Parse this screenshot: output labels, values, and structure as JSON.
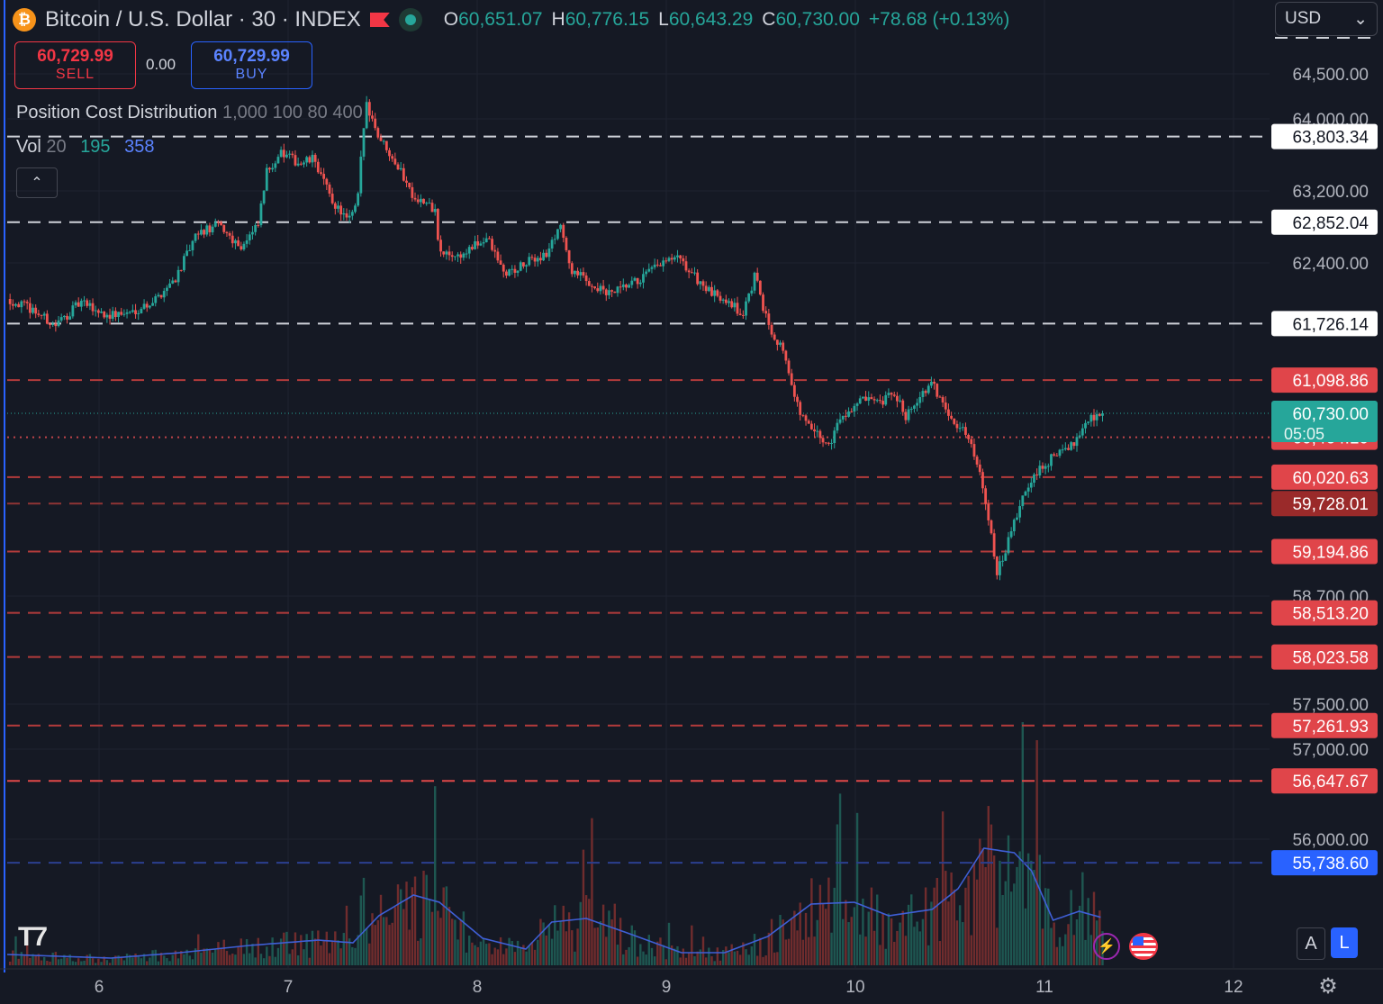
{
  "header": {
    "symbol_title": "Bitcoin / U.S. Dollar · 30 · INDEX",
    "ohlc": [
      {
        "k": "O",
        "v": "60,651.07"
      },
      {
        "k": "H",
        "v": "60,776.15"
      },
      {
        "k": "L",
        "v": "60,643.29"
      },
      {
        "k": "C",
        "v": "60,730.00"
      }
    ],
    "change": "+78.68 (+0.13%)",
    "currency": "USD"
  },
  "trade": {
    "sell_price": "60,729.99",
    "sell_label": "SELL",
    "spread": "0.00",
    "buy_price": "60,729.99",
    "buy_label": "BUY"
  },
  "indicators": {
    "pcd_name": "Position Cost Distribution",
    "pcd_params": "1,000 100 80 400",
    "vol_name": "Vol",
    "vol_length": "20",
    "vol_value": "195",
    "vol_ma_value": "358"
  },
  "controls": {
    "collapse": "⌃",
    "scale_a": "A",
    "scale_l": "L",
    "settings": "⚙",
    "bolt": "⚡"
  },
  "colors": {
    "background": "#151924",
    "up": "#26a69a",
    "down": "#ef5350",
    "white_level": "#cfd2d9",
    "red_level": "#b33b3b",
    "vol_ma": "#3f5fd6"
  },
  "chart_data": {
    "type": "candlestick",
    "title": "Bitcoin / U.S. Dollar · 30 · INDEX",
    "x_tick_labels": [
      "6",
      "7",
      "8",
      "9",
      "10",
      "11",
      "12"
    ],
    "y_tick_labels": [
      "64,500.00",
      "64,000.00",
      "63,200.00",
      "62,400.00",
      "58,700.00",
      "57,500.00",
      "57,000.00",
      "56,000.00"
    ],
    "y_ticks": [
      64500,
      64000,
      63200,
      62400,
      58700,
      57500,
      57000,
      56000
    ],
    "ylim": [
      55500,
      64700
    ],
    "last_price": {
      "value": 60730.0,
      "label": "60,730.00",
      "countdown": "05:05"
    },
    "levels": [
      {
        "value": 63803.34,
        "label": "63,803.34",
        "style": "white"
      },
      {
        "value": 62852.04,
        "label": "62,852.04",
        "style": "white"
      },
      {
        "value": 61726.14,
        "label": "61,726.14",
        "style": "white"
      },
      {
        "value": 61098.86,
        "label": "61,098.86",
        "style": "red"
      },
      {
        "value": 60464.1,
        "label": "60,464.10",
        "style": "red-dotted"
      },
      {
        "value": 60020.63,
        "label": "60,020.63",
        "style": "red"
      },
      {
        "value": 59728.01,
        "label": "59,728.01",
        "style": "darkred"
      },
      {
        "value": 59194.86,
        "label": "59,194.86",
        "style": "red"
      },
      {
        "value": 58513.2,
        "label": "58,513.20",
        "style": "red"
      },
      {
        "value": 58023.58,
        "label": "58,023.58",
        "style": "red"
      },
      {
        "value": 57261.93,
        "label": "57,261.93",
        "style": "red"
      },
      {
        "value": 56647.67,
        "label": "56,647.67",
        "style": "bright-red"
      },
      {
        "value": 55738.6,
        "label": "55,738.60",
        "style": "blue"
      }
    ],
    "price_path": [
      [
        0,
        62000
      ],
      [
        0.3,
        61880
      ],
      [
        0.55,
        61700
      ],
      [
        0.85,
        61960
      ],
      [
        1.15,
        61820
      ],
      [
        1.4,
        61840
      ],
      [
        1.7,
        61980
      ],
      [
        1.95,
        62240
      ],
      [
        2.2,
        62720
      ],
      [
        2.45,
        62820
      ],
      [
        2.7,
        62580
      ],
      [
        2.9,
        62800
      ],
      [
        3.0,
        63400
      ],
      [
        3.15,
        63620
      ],
      [
        3.4,
        63500
      ],
      [
        3.55,
        63560
      ],
      [
        3.75,
        63100
      ],
      [
        3.95,
        62860
      ],
      [
        4.05,
        63050
      ],
      [
        4.15,
        64200
      ],
      [
        4.3,
        63800
      ],
      [
        4.45,
        63600
      ],
      [
        4.7,
        63150
      ],
      [
        4.95,
        62980
      ],
      [
        5.0,
        62500
      ],
      [
        5.25,
        62480
      ],
      [
        5.55,
        62680
      ],
      [
        5.75,
        62280
      ],
      [
        5.9,
        62330
      ],
      [
        6.1,
        62450
      ],
      [
        6.25,
        62500
      ],
      [
        6.4,
        62850
      ],
      [
        6.5,
        62350
      ],
      [
        6.7,
        62200
      ],
      [
        6.95,
        62050
      ],
      [
        7.1,
        62100
      ],
      [
        7.3,
        62200
      ],
      [
        7.55,
        62380
      ],
      [
        7.75,
        62450
      ],
      [
        7.95,
        62250
      ],
      [
        8.15,
        62050
      ],
      [
        8.35,
        62000
      ],
      [
        8.5,
        61800
      ],
      [
        8.65,
        62250
      ],
      [
        8.8,
        61720
      ],
      [
        9.0,
        61400
      ],
      [
        9.1,
        60900
      ],
      [
        9.25,
        60600
      ],
      [
        9.5,
        60370
      ],
      [
        9.65,
        60700
      ],
      [
        9.9,
        60880
      ],
      [
        10.1,
        60820
      ],
      [
        10.25,
        60960
      ],
      [
        10.4,
        60700
      ],
      [
        10.5,
        60860
      ],
      [
        10.7,
        61050
      ],
      [
        10.85,
        60800
      ],
      [
        11.0,
        60600
      ],
      [
        11.15,
        60420
      ],
      [
        11.3,
        59900
      ],
      [
        11.45,
        58940
      ],
      [
        11.6,
        59350
      ],
      [
        11.75,
        59800
      ],
      [
        11.9,
        60050
      ],
      [
        12.1,
        60250
      ],
      [
        12.3,
        60350
      ],
      [
        12.45,
        60600
      ],
      [
        12.55,
        60700
      ],
      [
        12.7,
        60730
      ]
    ],
    "volume_ma_path": [
      [
        0,
        12
      ],
      [
        1.2,
        8
      ],
      [
        2.0,
        14
      ],
      [
        2.8,
        22
      ],
      [
        3.6,
        28
      ],
      [
        4.0,
        25
      ],
      [
        4.3,
        55
      ],
      [
        4.7,
        78
      ],
      [
        5.0,
        70
      ],
      [
        5.5,
        30
      ],
      [
        6.0,
        18
      ],
      [
        6.3,
        48
      ],
      [
        6.7,
        52
      ],
      [
        7.2,
        35
      ],
      [
        7.8,
        14
      ],
      [
        8.3,
        14
      ],
      [
        8.8,
        32
      ],
      [
        9.3,
        68
      ],
      [
        9.8,
        70
      ],
      [
        10.2,
        55
      ],
      [
        10.7,
        62
      ],
      [
        11.0,
        85
      ],
      [
        11.3,
        130
      ],
      [
        11.65,
        125
      ],
      [
        11.85,
        105
      ],
      [
        12.1,
        50
      ],
      [
        12.4,
        60
      ],
      [
        12.7,
        52
      ]
    ]
  }
}
